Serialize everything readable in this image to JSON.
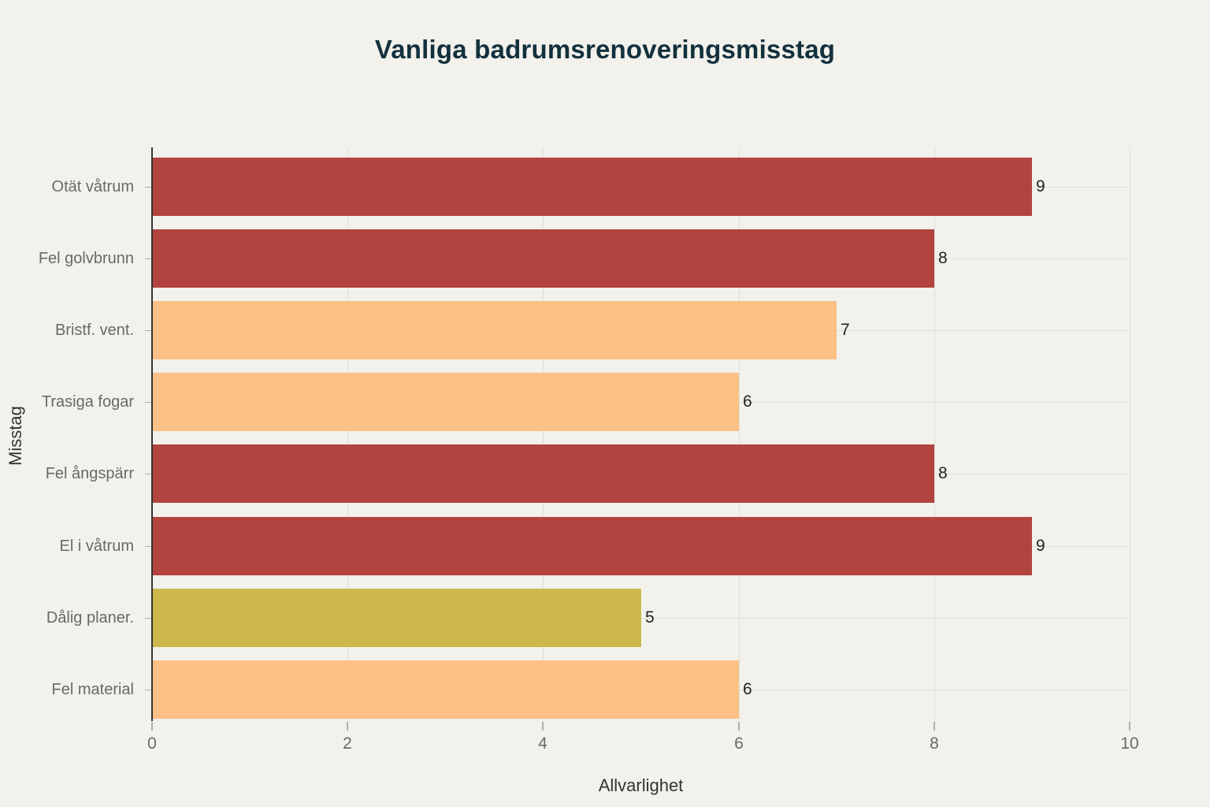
{
  "title": "Vanliga badrumsrenoveringsmisstag",
  "chart_data": {
    "type": "bar",
    "orientation": "horizontal",
    "title": "Vanliga badrumsrenoveringsmisstag",
    "categories": [
      "Otät våtrum",
      "Fel golvbrunn",
      "Bristf. vent.",
      "Trasiga fogar",
      "Fel ångspärr",
      "El i våtrum",
      "Dålig planer.",
      "Fel material"
    ],
    "values": [
      9,
      8,
      7,
      6,
      8,
      9,
      5,
      6
    ],
    "value_labels": [
      "9",
      "8",
      "7",
      "6",
      "8",
      "9",
      "5",
      "6"
    ],
    "bar_colors": [
      "#B2433E",
      "#B2433E",
      "#FDC086",
      "#FDC086",
      "#B2433E",
      "#B2433E",
      "#CCB84B",
      "#FDC086"
    ],
    "xlabel": "Allvarlighet",
    "ylabel": "Misstag",
    "xlim": [
      0,
      10
    ],
    "x_ticks": [
      "0",
      "2",
      "4",
      "6",
      "8",
      "10"
    ],
    "x_tick_values": [
      0,
      2,
      4,
      6,
      8,
      10
    ],
    "grid": "on",
    "legend": "none"
  },
  "colors": {
    "background": "#F2F1EB",
    "title_text": "#13303D",
    "category_text": "#696969",
    "tick_text": "#696969",
    "value_text": "#222222",
    "axis_title_text": "#333333",
    "axis_line": "#333333",
    "gridline": "#DFDED6",
    "tick_mark": "#AFAFA8"
  }
}
